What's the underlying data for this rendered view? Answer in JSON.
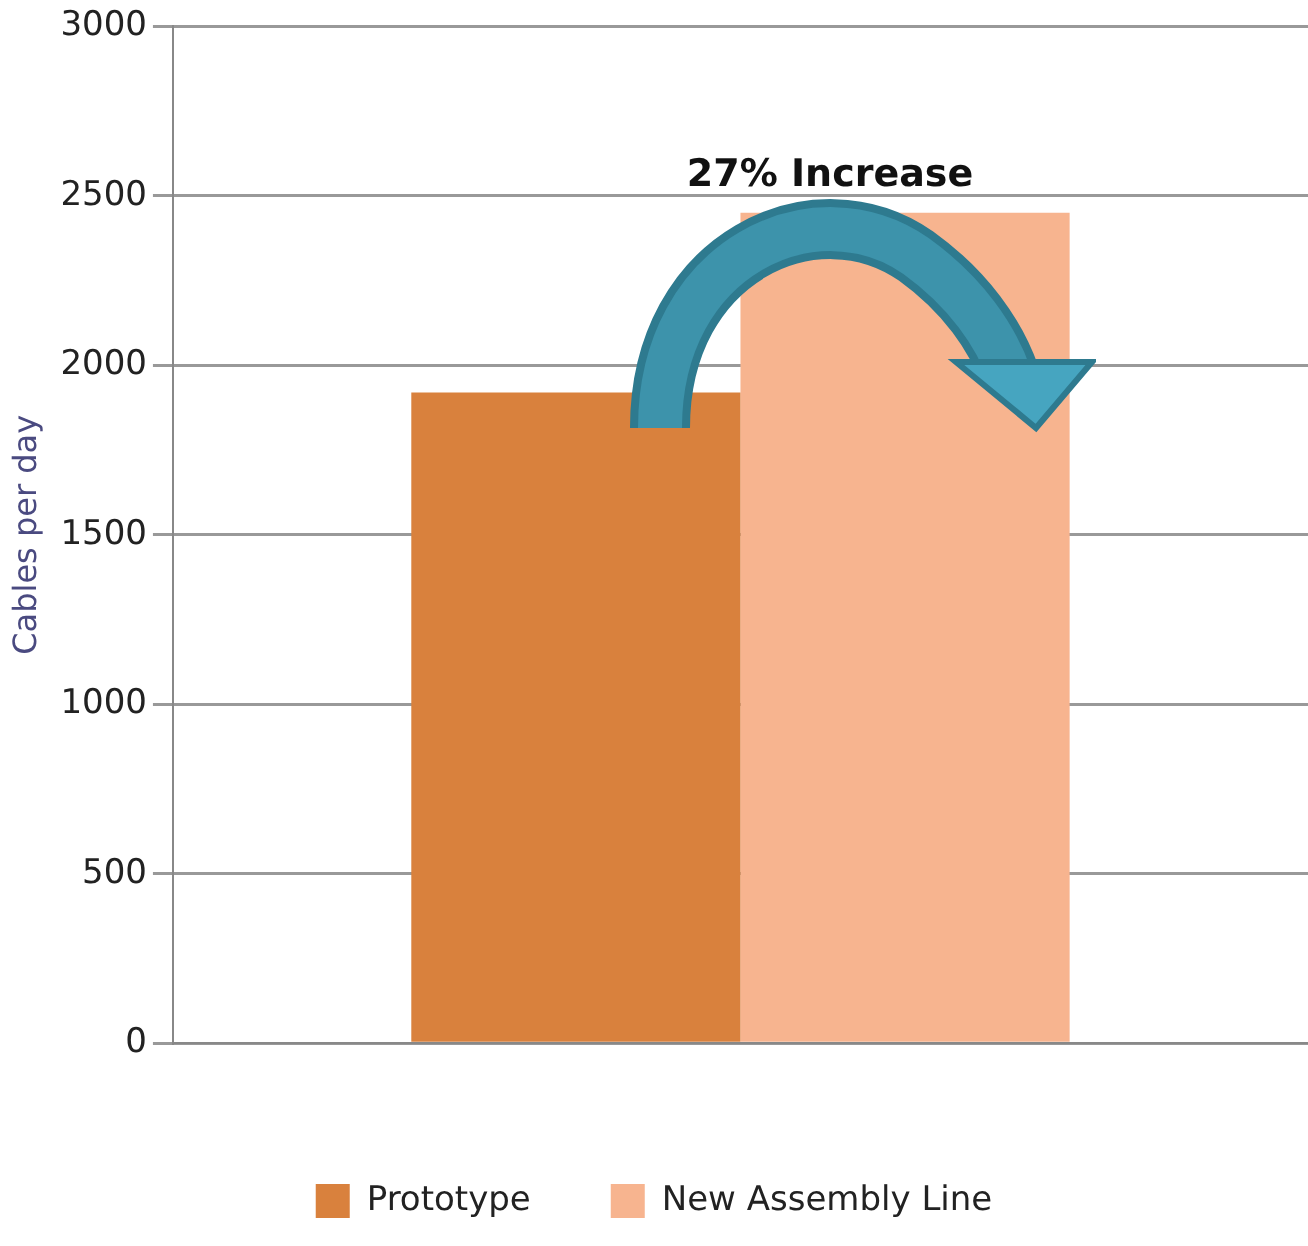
{
  "chart_data": {
    "type": "bar",
    "ylabel": "Cables per day",
    "categories": [
      null
    ],
    "series": [
      {
        "name": "Prototype",
        "color": "#d9813d",
        "values": [
          1920
        ]
      },
      {
        "name": "New Assembly Line",
        "color": "#f7b48f",
        "values": [
          2450
        ]
      }
    ],
    "ylim": [
      0,
      3000
    ],
    "yticks": [
      0,
      500,
      1000,
      1500,
      2000,
      2500,
      3000
    ],
    "grid": "y",
    "legend": "bottom",
    "annotations": [
      "27% Increase"
    ]
  }
}
